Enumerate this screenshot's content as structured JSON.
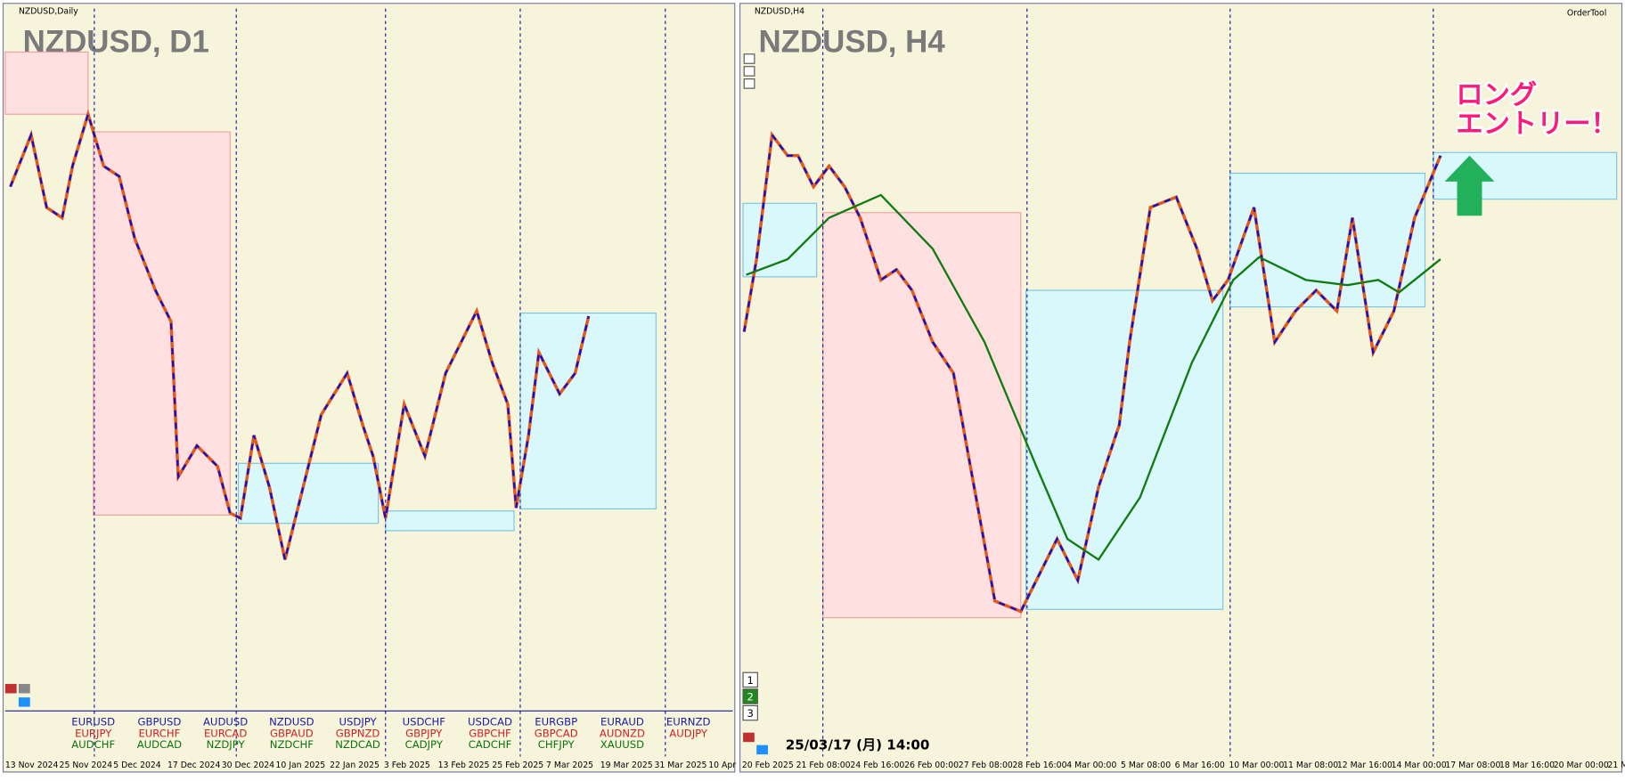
{
  "left_panel": {
    "window_label": "NZDUSD,Daily",
    "title": "NZDUSD, D1",
    "dates": [
      "13 Nov 2024",
      "25 Nov 2024",
      "5 Dec 2024",
      "17 Dec 2024",
      "30 Dec 2024",
      "10 Jan 2025",
      "22 Jan 2025",
      "3 Feb 2025",
      "13 Feb 2025",
      "25 Feb 2025",
      "7 Mar 2025",
      "19 Mar 2025",
      "31 Mar 2025",
      "10 Apr"
    ],
    "symbols": [
      [
        "EURUSD",
        "EURJPY",
        "AUDCHF"
      ],
      [
        "GBPUSD",
        "EURCHF",
        "AUDCAD"
      ],
      [
        "AUDUSD",
        "EURCAD",
        "NZDJPY"
      ],
      [
        "NZDUSD",
        "GBPAUD",
        "NZDCHF"
      ],
      [
        "USDJPY",
        "GBPNZD",
        "NZDCAD"
      ],
      [
        "USDCHF",
        "GBPJPY",
        "CADJPY"
      ],
      [
        "USDCAD",
        "GBPCHF",
        "CADCHF"
      ],
      [
        "EURGBP",
        "GBPCAD",
        "CHFJPY"
      ],
      [
        "EURAUD",
        "AUDNZD",
        "XAUUSD"
      ],
      [
        "EURNZD",
        "AUDJPY"
      ]
    ]
  },
  "right_panel": {
    "window_label": "NZDUSD,H4",
    "title": "NZDUSD, H4",
    "tool_label": "OrderTool",
    "annotation": [
      "ロング",
      "エントリー！"
    ],
    "timestamp": "25/03/17 (月) 14:00",
    "buttons": [
      "1",
      "2",
      "3"
    ],
    "dates": [
      "20 Feb 2025",
      "21 Feb 08:00",
      "24 Feb 16:00",
      "26 Feb 00:00",
      "27 Feb 08:00",
      "28 Feb 16:00",
      "4 Mar 00:00",
      "5 Mar 08:00",
      "6 Mar 16:00",
      "10 Mar 00:00",
      "11 Mar 08:00",
      "12 Mar 16:00",
      "14 Mar 00:00",
      "17 Mar 08:00",
      "18 Mar 16:00",
      "20 Mar 00:00",
      "21 M"
    ]
  }
}
